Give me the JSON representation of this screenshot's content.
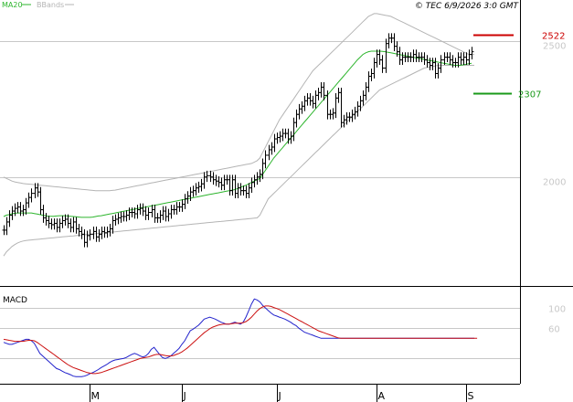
{
  "legend": {
    "ma": "MA20",
    "bbands": "BBands"
  },
  "copyright": "© TEC 6/9/2026 3:0 GMT",
  "levels": {
    "resistance": "2522",
    "support": "2307"
  },
  "colors": {
    "price": "#000000",
    "ma20": "#2db52d",
    "bands": "#b4b4b4",
    "resistance": "#cc0000",
    "support": "#1a9a1a",
    "macd": "#2222cc",
    "signal": "#cc1111",
    "grid": "#c8c8c8",
    "axis_text": "#c8c8c8"
  },
  "chart_data": [
    {
      "type": "ohlc",
      "title": "",
      "yticks": [
        2000,
        2500
      ],
      "ytick_labels": [
        "2000",
        "2500"
      ],
      "ylim": [
        1600,
        2650
      ],
      "x_labels": [
        {
          "label": "M",
          "bar": 31
        },
        {
          "label": "J",
          "bar": 64
        },
        {
          "label": "J",
          "bar": 98
        },
        {
          "label": "A",
          "bar": 134
        },
        {
          "label": "S",
          "bar": 166
        }
      ],
      "series": [
        {
          "name": "Price",
          "close": [
            1805,
            1835,
            1860,
            1875,
            1885,
            1890,
            1875,
            1880,
            1905,
            1925,
            1940,
            1960,
            1945,
            1880,
            1850,
            1840,
            1830,
            1825,
            1830,
            1815,
            1830,
            1840,
            1845,
            1830,
            1815,
            1835,
            1810,
            1800,
            1790,
            1760,
            1785,
            1790,
            1800,
            1780,
            1790,
            1800,
            1795,
            1800,
            1810,
            1840,
            1845,
            1850,
            1855,
            1855,
            1860,
            1870,
            1870,
            1865,
            1880,
            1885,
            1875,
            1860,
            1870,
            1880,
            1850,
            1850,
            1860,
            1875,
            1855,
            1865,
            1880,
            1880,
            1890,
            1890,
            1900,
            1920,
            1930,
            1945,
            1950,
            1960,
            1965,
            1975,
            2000,
            2005,
            2000,
            1990,
            1985,
            1980,
            1970,
            1990,
            1990,
            1950,
            1990,
            1940,
            1960,
            1950,
            1950,
            1940,
            1960,
            1980,
            1990,
            2000,
            2010,
            2050,
            2080,
            2100,
            2110,
            2140,
            2145,
            2150,
            2160,
            2160,
            2140,
            2150,
            2200,
            2230,
            2250,
            2260,
            2280,
            2290,
            2280,
            2270,
            2300,
            2310,
            2330,
            2300,
            2230,
            2230,
            2235,
            2290,
            2310,
            2200,
            2210,
            2220,
            2220,
            2230,
            2240,
            2260,
            2280,
            2300,
            2330,
            2370,
            2380,
            2420,
            2450,
            2430,
            2400,
            2490,
            2510,
            2510,
            2480,
            2460,
            2430,
            2440,
            2440,
            2440,
            2440,
            2450,
            2440,
            2440,
            2440,
            2430,
            2420,
            2410,
            2420,
            2380,
            2400,
            2430,
            2440,
            2440,
            2430,
            2420,
            2420,
            2440,
            2430,
            2440,
            2430,
            2450,
            2460
          ]
        },
        {
          "name": "MA20",
          "values": [
            1855,
            1860,
            1862,
            1865,
            1867,
            1868,
            1868,
            1868,
            1868,
            1868,
            1868,
            1866,
            1864,
            1862,
            1860,
            1858,
            1856,
            1856,
            1856,
            1857,
            1858,
            1858,
            1858,
            1857,
            1856,
            1855,
            1854,
            1853,
            1852,
            1852,
            1852,
            1852,
            1853,
            1855,
            1857,
            1858,
            1860,
            1862,
            1864,
            1866,
            1868,
            1870,
            1872,
            1874,
            1876,
            1878,
            1880,
            1882,
            1884,
            1886,
            1888,
            1890,
            1892,
            1894,
            1896,
            1898,
            1900,
            1902,
            1904,
            1906,
            1908,
            1910,
            1912,
            1914,
            1916,
            1918,
            1920,
            1922,
            1924,
            1926,
            1928,
            1930,
            1932,
            1934,
            1936,
            1938,
            1940,
            1942,
            1944,
            1946,
            1948,
            1950,
            1952,
            1954,
            1958,
            1962,
            1966,
            1970,
            1975,
            1980,
            1985,
            1990,
            1995,
            2010,
            2025,
            2040,
            2055,
            2070,
            2082,
            2094,
            2106,
            2118,
            2130,
            2142,
            2154,
            2166,
            2178,
            2190,
            2202,
            2214,
            2226,
            2238,
            2250,
            2262,
            2274,
            2286,
            2298,
            2310,
            2322,
            2334,
            2346,
            2358,
            2370,
            2382,
            2394,
            2406,
            2418,
            2430,
            2440,
            2450,
            2456,
            2460,
            2462,
            2462,
            2462,
            2462,
            2461,
            2460,
            2458,
            2456,
            2454,
            2452,
            2450,
            2448,
            2446,
            2444,
            2442,
            2440,
            2438,
            2436,
            2434,
            2432,
            2430,
            2428,
            2426,
            2424,
            2422,
            2420,
            2418,
            2416,
            2414,
            2412,
            2410,
            2410,
            2410,
            2412,
            2414,
            2416,
            2418
          ]
        },
        {
          "name": "BB upper",
          "values": [
            2000,
            1995,
            1990,
            1985,
            1982,
            1980,
            1978,
            1976,
            1975,
            1974,
            1973,
            1972,
            1971,
            1970,
            1969,
            1968,
            1967,
            1966,
            1965,
            1964,
            1963,
            1962,
            1961,
            1960,
            1959,
            1958,
            1957,
            1956,
            1955,
            1954,
            1953,
            1952,
            1951,
            1950,
            1950,
            1950,
            1950,
            1950,
            1950,
            1951,
            1952,
            1954,
            1956,
            1958,
            1960,
            1962,
            1964,
            1966,
            1968,
            1970,
            1972,
            1974,
            1976,
            1978,
            1980,
            1982,
            1984,
            1986,
            1988,
            1990,
            1992,
            1994,
            1996,
            1998,
            2000,
            2002,
            2004,
            2006,
            2008,
            2010,
            2012,
            2014,
            2016,
            2018,
            2020,
            2022,
            2024,
            2026,
            2028,
            2030,
            2032,
            2034,
            2036,
            2038,
            2040,
            2042,
            2044,
            2046,
            2048,
            2050,
            2055,
            2060,
            2070,
            2090,
            2110,
            2130,
            2150,
            2170,
            2190,
            2210,
            2225,
            2240,
            2255,
            2270,
            2285,
            2300,
            2315,
            2330,
            2345,
            2360,
            2375,
            2390,
            2400,
            2410,
            2420,
            2430,
            2440,
            2450,
            2460,
            2470,
            2480,
            2490,
            2500,
            2510,
            2520,
            2530,
            2540,
            2550,
            2560,
            2570,
            2580,
            2590,
            2595,
            2600,
            2600,
            2598,
            2596,
            2594,
            2592,
            2590,
            2585,
            2580,
            2575,
            2570,
            2565,
            2560,
            2555,
            2550,
            2545,
            2540,
            2535,
            2530,
            2525,
            2520,
            2515,
            2510,
            2505,
            2500,
            2495,
            2490,
            2485,
            2480,
            2475,
            2470,
            2465,
            2460,
            2455,
            2450,
            2450,
            2450
          ]
        },
        {
          "name": "BB lower",
          "values": [
            1710,
            1725,
            1735,
            1745,
            1752,
            1758,
            1762,
            1765,
            1767,
            1768,
            1769,
            1770,
            1771,
            1772,
            1773,
            1774,
            1775,
            1776,
            1777,
            1778,
            1779,
            1780,
            1781,
            1782,
            1783,
            1784,
            1785,
            1786,
            1787,
            1788,
            1789,
            1790,
            1791,
            1792,
            1793,
            1794,
            1795,
            1796,
            1797,
            1798,
            1799,
            1800,
            1801,
            1802,
            1803,
            1804,
            1805,
            1806,
            1807,
            1808,
            1809,
            1810,
            1811,
            1812,
            1813,
            1814,
            1815,
            1816,
            1817,
            1818,
            1819,
            1820,
            1821,
            1822,
            1823,
            1824,
            1825,
            1826,
            1827,
            1828,
            1829,
            1830,
            1831,
            1832,
            1833,
            1834,
            1835,
            1836,
            1837,
            1838,
            1839,
            1840,
            1841,
            1842,
            1843,
            1844,
            1845,
            1846,
            1847,
            1848,
            1849,
            1850,
            1860,
            1880,
            1900,
            1920,
            1930,
            1940,
            1950,
            1960,
            1970,
            1980,
            1990,
            2000,
            2010,
            2020,
            2030,
            2040,
            2050,
            2060,
            2070,
            2080,
            2090,
            2100,
            2110,
            2120,
            2130,
            2140,
            2150,
            2160,
            2170,
            2180,
            2190,
            2200,
            2210,
            2220,
            2230,
            2240,
            2250,
            2260,
            2270,
            2280,
            2290,
            2300,
            2310,
            2320,
            2325,
            2330,
            2335,
            2340,
            2345,
            2350,
            2355,
            2360,
            2365,
            2370,
            2375,
            2380,
            2385,
            2390,
            2395,
            2400,
            2402,
            2404,
            2406,
            2408,
            2410,
            2410,
            2410,
            2410,
            2410,
            2410,
            2410,
            2410,
            2410,
            2410,
            2410,
            2410,
            2410,
            2410
          ]
        }
      ]
    },
    {
      "type": "line",
      "title": "MACD",
      "yticks": [
        0,
        60,
        100
      ],
      "ytick_labels": [
        "",
        "60",
        "100"
      ],
      "ylim": [
        -50,
        140
      ],
      "series": [
        {
          "name": "MACD",
          "values": [
            32,
            30,
            28,
            28,
            30,
            32,
            34,
            36,
            38,
            38,
            35,
            30,
            20,
            10,
            5,
            0,
            -5,
            -10,
            -15,
            -20,
            -22,
            -25,
            -28,
            -30,
            -32,
            -35,
            -36,
            -36,
            -36,
            -35,
            -33,
            -30,
            -28,
            -25,
            -22,
            -18,
            -15,
            -12,
            -8,
            -5,
            -3,
            -2,
            -1,
            0,
            2,
            5,
            8,
            10,
            8,
            5,
            3,
            5,
            10,
            18,
            22,
            15,
            8,
            2,
            0,
            2,
            5,
            10,
            15,
            20,
            28,
            35,
            45,
            55,
            58,
            62,
            66,
            72,
            78,
            80,
            82,
            80,
            78,
            75,
            72,
            70,
            68,
            68,
            70,
            72,
            70,
            68,
            72,
            82,
            95,
            108,
            118,
            116,
            112,
            105,
            100,
            95,
            90,
            86,
            84,
            82,
            80,
            78,
            75,
            72,
            68,
            65,
            60,
            56,
            52,
            50,
            48,
            46,
            44,
            42,
            40,
            40,
            40,
            40,
            40,
            40,
            40,
            40,
            40,
            40,
            40,
            40,
            40,
            40,
            40,
            40,
            40,
            40,
            40,
            40,
            40,
            40,
            40,
            40,
            40,
            40,
            40,
            40,
            40,
            40,
            40,
            40,
            40,
            40,
            40,
            40,
            40,
            40,
            40,
            40,
            40,
            40,
            40,
            40,
            40,
            40,
            40,
            40,
            40,
            40,
            40,
            40,
            40,
            40,
            40,
            40
          ]
        },
        {
          "name": "Signal",
          "values": [
            38,
            37,
            36,
            35,
            34,
            34,
            34,
            34,
            35,
            36,
            36,
            35,
            32,
            28,
            24,
            20,
            16,
            12,
            8,
            4,
            0,
            -4,
            -8,
            -12,
            -15,
            -18,
            -20,
            -22,
            -24,
            -26,
            -28,
            -29,
            -30,
            -30,
            -29,
            -28,
            -26,
            -24,
            -22,
            -20,
            -18,
            -16,
            -14,
            -12,
            -10,
            -8,
            -6,
            -4,
            -2,
            0,
            1,
            2,
            3,
            5,
            7,
            8,
            8,
            7,
            6,
            5,
            5,
            6,
            8,
            10,
            13,
            17,
            21,
            26,
            31,
            36,
            41,
            46,
            51,
            55,
            59,
            62,
            64,
            66,
            67,
            68,
            68,
            68,
            69,
            70,
            70,
            70,
            71,
            73,
            77,
            82,
            88,
            94,
            99,
            102,
            104,
            104,
            103,
            101,
            99,
            97,
            94,
            91,
            88,
            85,
            82,
            79,
            76,
            73,
            70,
            67,
            64,
            61,
            58,
            55,
            53,
            51,
            49,
            47,
            45,
            43,
            41,
            40,
            40,
            40,
            40,
            40,
            40,
            40,
            40,
            40,
            40,
            40,
            40,
            40,
            40,
            40,
            40,
            40,
            40,
            40,
            40,
            40,
            40,
            40,
            40,
            40,
            40,
            40,
            40,
            40,
            40,
            40,
            40,
            40,
            40,
            40,
            40,
            40,
            40,
            40,
            40,
            40,
            40,
            40,
            40,
            40,
            40,
            40,
            40,
            40,
            40
          ]
        }
      ]
    }
  ]
}
